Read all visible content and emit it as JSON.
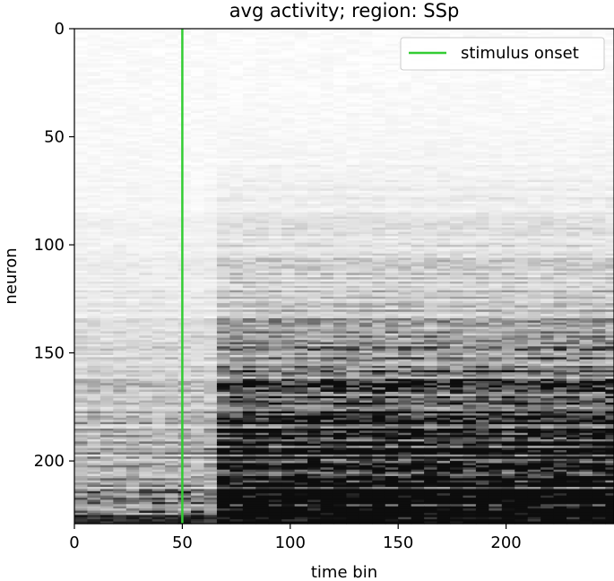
{
  "chart_data": {
    "type": "heatmap",
    "title": "avg activity; region: SSp",
    "xlabel": "time bin",
    "ylabel": "neuron",
    "xlim": [
      0,
      250
    ],
    "ylim": [
      229,
      0
    ],
    "y_inverted": true,
    "xticks": [
      0,
      50,
      100,
      150,
      200
    ],
    "yticks": [
      0,
      50,
      100,
      150,
      200
    ],
    "colormap": "greys",
    "stimulus_onset_x": 50,
    "annotations": [
      {
        "type": "vline",
        "x": 50,
        "label": "stimulus onset",
        "color": "#33cc33"
      }
    ],
    "legend": {
      "placement": "top-right",
      "entries": [
        "stimulus onset"
      ]
    },
    "grid": false
  }
}
